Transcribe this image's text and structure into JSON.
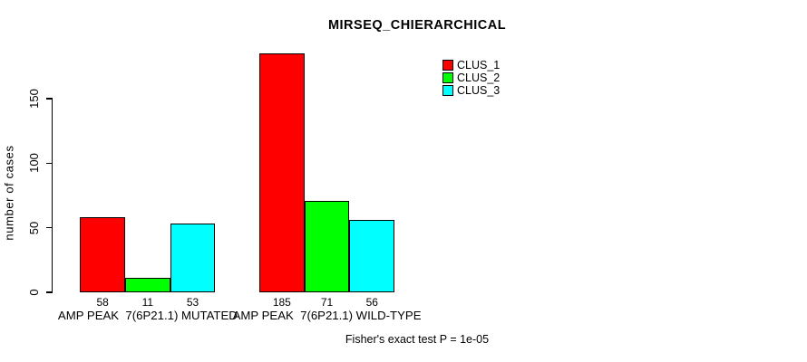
{
  "chart_data": {
    "type": "bar",
    "title": "MIRSEQ_CHIERARCHICAL",
    "ylabel": "number of cases",
    "xlabel": "",
    "yticks": [
      0,
      50,
      100,
      150
    ],
    "ylim": [
      0,
      150
    ],
    "grid": false,
    "legend_position": "top-right",
    "categories": [
      "AMP PEAK  7(6P21.1) MUTATED",
      "AMP PEAK  7(6P21.1) WILD-TYPE"
    ],
    "series": [
      {
        "name": "CLUS_1",
        "color": "#ff0000",
        "values": [
          58,
          185
        ]
      },
      {
        "name": "CLUS_2",
        "color": "#00ff00",
        "values": [
          11,
          71
        ]
      },
      {
        "name": "CLUS_3",
        "color": "#00ffff",
        "values": [
          53,
          56
        ]
      }
    ],
    "bar_value_labels": [
      [
        58,
        11,
        53
      ],
      [
        185,
        71,
        56
      ]
    ],
    "footnote": "Fisher's exact test P = 1e-05",
    "axis_color": "#000000",
    "bar_border_color": "#000000"
  }
}
